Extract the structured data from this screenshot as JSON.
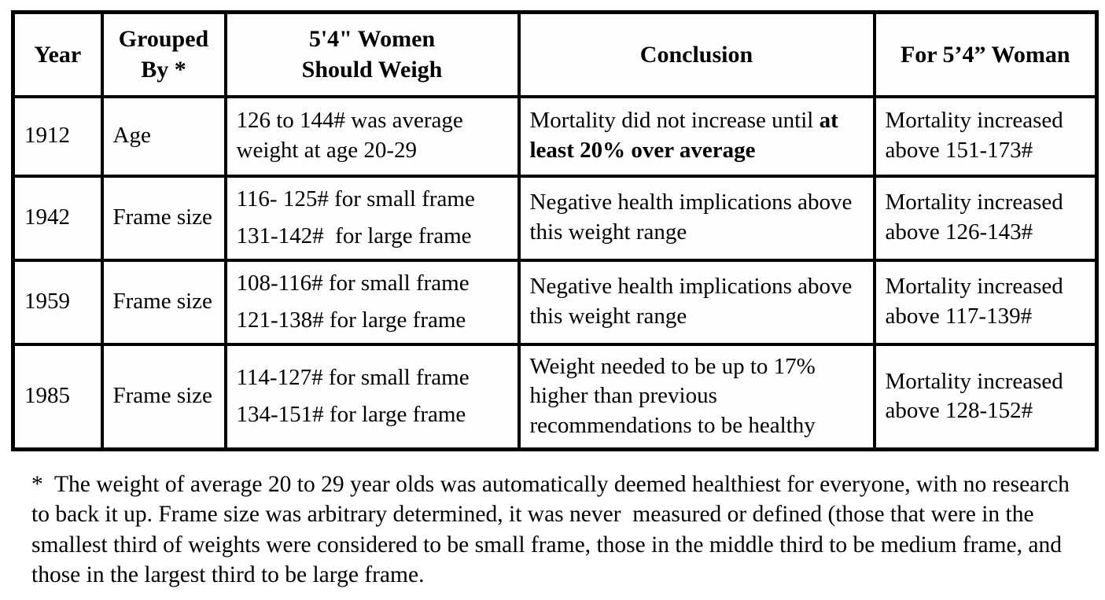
{
  "table": {
    "columns": [
      {
        "lines": [
          "Year"
        ]
      },
      {
        "lines": [
          "Grouped",
          "By *"
        ]
      },
      {
        "lines": [
          "5'4\" Women",
          "Should Weigh"
        ]
      },
      {
        "lines": [
          "Conclusion"
        ]
      },
      {
        "lines": [
          "For 5’4” Woman"
        ]
      }
    ],
    "rows": [
      {
        "year": "1912",
        "grouped_by": "Age",
        "weight_lines": [
          "126 to 144# was average weight at age 20-29"
        ],
        "conclusion_normal": "Mortality did not increase until ",
        "conclusion_bold": "at least 20% over average",
        "for_woman": "Mortality increased above 151-173#"
      },
      {
        "year": "1942",
        "grouped_by": "Frame size",
        "weight_lines": [
          "116- 125# for small frame",
          "131-142#  for large frame"
        ],
        "conclusion_normal": "Negative health implications above this weight range",
        "conclusion_bold": "",
        "for_woman": "Mortality increased above 126-143#"
      },
      {
        "year": "1959",
        "grouped_by": "Frame size",
        "weight_lines": [
          "108-116# for small frame",
          "121-138# for large frame"
        ],
        "conclusion_normal": "Negative health implications above this weight range",
        "conclusion_bold": "",
        "for_woman": "Mortality increased above 117-139#"
      },
      {
        "year": "1985",
        "grouped_by": "Frame size",
        "weight_lines": [
          "114-127# for small frame",
          "134-151# for large frame"
        ],
        "conclusion_normal": "Weight needed to be up to 17% higher than previous recommendations to be healthy",
        "conclusion_bold": "",
        "for_woman": "Mortality increased above 128-152#"
      }
    ]
  },
  "footnote": "*  The weight of average 20 to 29 year olds was automatically deemed healthiest for everyone, with no research to back it up. Frame size was arbitrary determined, it was never  measured or defined (those that were in the smallest third of weights were considered to be small frame, those in the middle third to be medium frame, and those in the largest third to be large frame."
}
